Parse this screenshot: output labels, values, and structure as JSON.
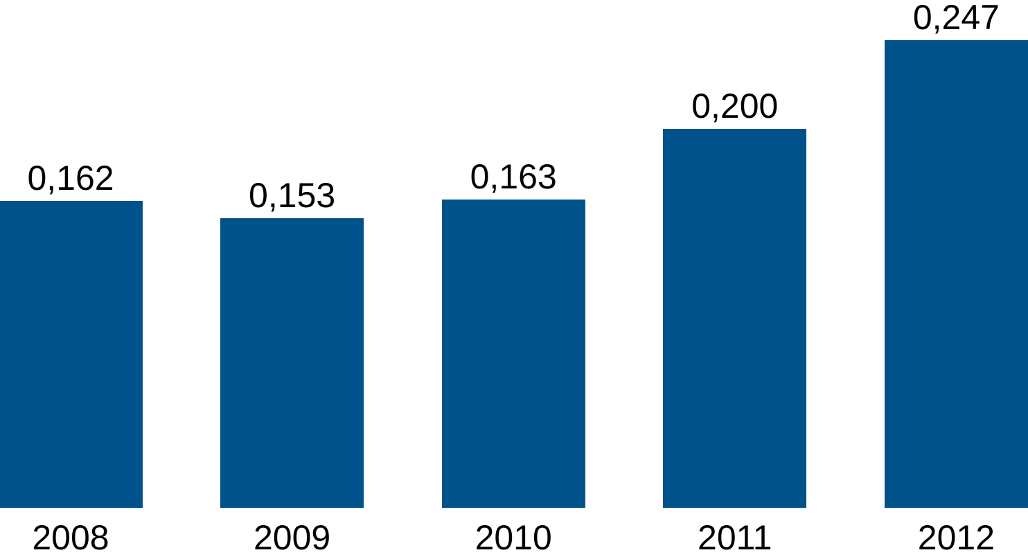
{
  "chart_data": {
    "type": "bar",
    "categories": [
      "2008",
      "2009",
      "2010",
      "2011",
      "2012"
    ],
    "values": [
      0.162,
      0.153,
      0.163,
      0.2,
      0.247
    ],
    "value_labels": [
      "0,162",
      "0,153",
      "0,163",
      "0,200",
      "0,247"
    ],
    "decimal_separator": ",",
    "ylim": [
      0,
      0.268
    ],
    "grid": false,
    "legend": false,
    "axes_visible": false,
    "bar_color": "#00528a",
    "label_color": "#000000",
    "background_color": "#ffffff"
  }
}
